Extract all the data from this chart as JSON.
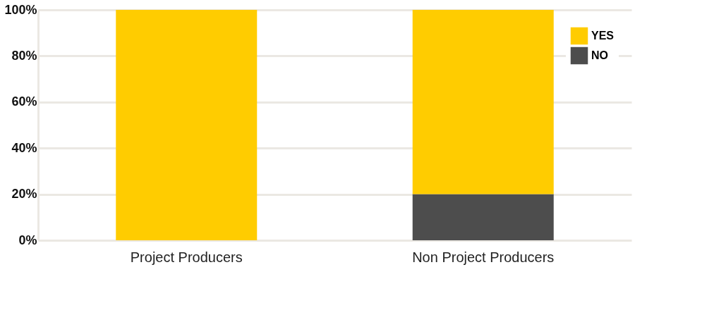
{
  "chart_data": {
    "type": "bar",
    "stacked": true,
    "categories": [
      "Project Producers",
      "Non Project Producers"
    ],
    "series": [
      {
        "name": "NO",
        "color": "#4d4d4d",
        "values": [
          0,
          20
        ]
      },
      {
        "name": "YES",
        "color": "#ffcc00",
        "values": [
          100,
          80
        ]
      }
    ],
    "ylim": [
      0,
      100
    ],
    "yticks": [
      {
        "value": 0,
        "label": "0%"
      },
      {
        "value": 20,
        "label": "20%"
      },
      {
        "value": 40,
        "label": "40%"
      },
      {
        "value": 60,
        "label": "60%"
      },
      {
        "value": 80,
        "label": "80%"
      },
      {
        "value": 100,
        "label": "100%"
      }
    ],
    "grid": "y",
    "legend": "top right"
  }
}
